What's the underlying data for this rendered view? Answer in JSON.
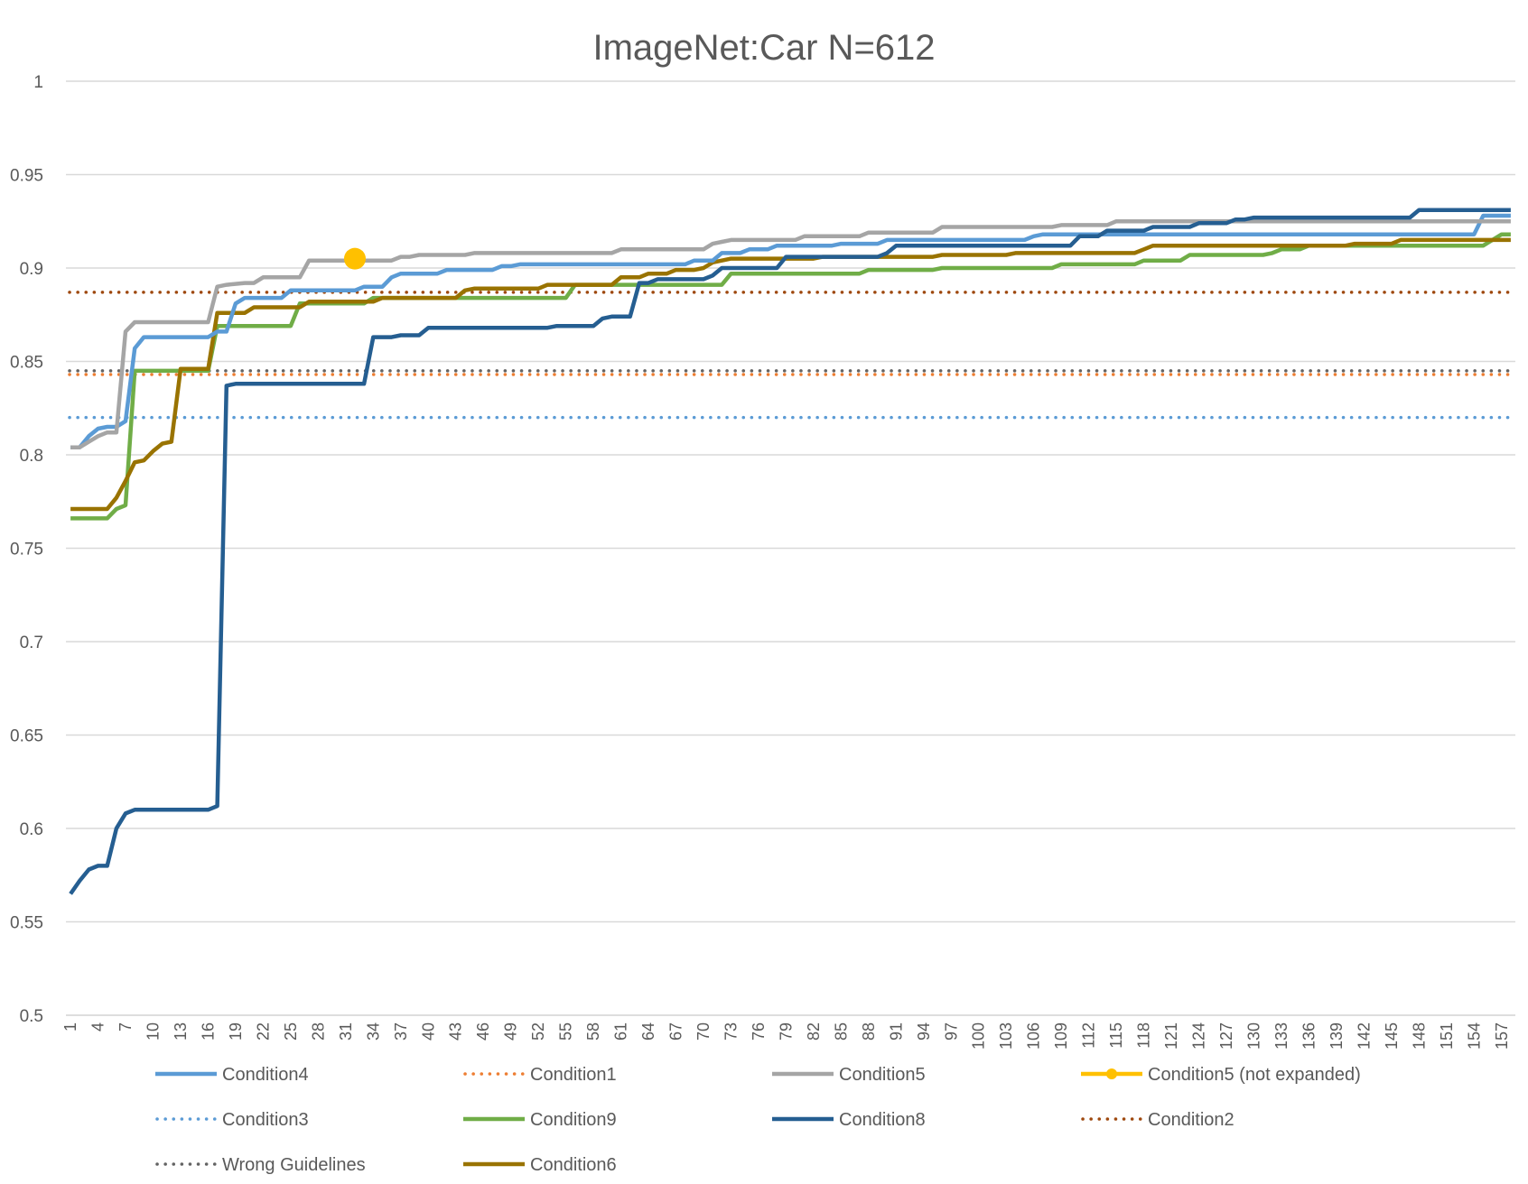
{
  "chart_data": {
    "type": "line",
    "title": "ImageNet:Car N=612",
    "xlabel": "",
    "ylabel": "",
    "ylim": [
      0.5,
      1
    ],
    "yticks": [
      "0.5",
      "0.55",
      "0.6",
      "0.65",
      "0.7",
      "0.75",
      "0.8",
      "0.85",
      "0.9",
      "0.95",
      "1"
    ],
    "x_range": [
      1,
      158
    ],
    "x_tick_labels": [
      "1",
      "4",
      "7",
      "10",
      "13",
      "16",
      "19",
      "22",
      "25",
      "28",
      "31",
      "34",
      "37",
      "40",
      "43",
      "46",
      "49",
      "52",
      "55",
      "58",
      "61",
      "64",
      "67",
      "70",
      "73",
      "76",
      "79",
      "82",
      "85",
      "88",
      "91",
      "94",
      "97",
      "100",
      "103",
      "106",
      "109",
      "112",
      "115",
      "118",
      "121",
      "124",
      "127",
      "130",
      "133",
      "136",
      "139",
      "142",
      "145",
      "148",
      "151",
      "154",
      "157"
    ],
    "grid": "horizontal",
    "legend_position": "bottom",
    "colors": {
      "Condition4": "#5b9bd5",
      "Condition1": "#ed7d31",
      "Condition5": "#a5a5a5",
      "Condition5 (not expanded)": "#ffc000",
      "Condition3": "#5b9bd5",
      "Condition9": "#70ad47",
      "Condition8": "#255e91",
      "Condition2": "#9e480e",
      "Wrong Guidelines": "#636363",
      "Condition6": "#997300"
    },
    "series": [
      {
        "name": "Condition4",
        "style": "solid",
        "points": [
          [
            1,
            0.804
          ],
          [
            2,
            0.804
          ],
          [
            3,
            0.81
          ],
          [
            4,
            0.814
          ],
          [
            5,
            0.815
          ],
          [
            6,
            0.815
          ],
          [
            7,
            0.818
          ],
          [
            8,
            0.857
          ],
          [
            9,
            0.863
          ],
          [
            16,
            0.863
          ],
          [
            17,
            0.866
          ],
          [
            18,
            0.866
          ],
          [
            19,
            0.881
          ],
          [
            20,
            0.884
          ],
          [
            24,
            0.884
          ],
          [
            25,
            0.888
          ],
          [
            32,
            0.888
          ],
          [
            33,
            0.89
          ],
          [
            35,
            0.89
          ],
          [
            36,
            0.895
          ],
          [
            37,
            0.897
          ],
          [
            41,
            0.897
          ],
          [
            42,
            0.899
          ],
          [
            47,
            0.899
          ],
          [
            48,
            0.901
          ],
          [
            49,
            0.901
          ],
          [
            50,
            0.902
          ],
          [
            68,
            0.902
          ],
          [
            69,
            0.904
          ],
          [
            71,
            0.904
          ],
          [
            72,
            0.908
          ],
          [
            74,
            0.908
          ],
          [
            75,
            0.91
          ],
          [
            77,
            0.91
          ],
          [
            78,
            0.912
          ],
          [
            84,
            0.912
          ],
          [
            85,
            0.913
          ],
          [
            89,
            0.913
          ],
          [
            90,
            0.915
          ],
          [
            105,
            0.915
          ],
          [
            106,
            0.917
          ],
          [
            107,
            0.918
          ],
          [
            154,
            0.918
          ],
          [
            155,
            0.928
          ],
          [
            158,
            0.928
          ]
        ]
      },
      {
        "name": "Condition1",
        "style": "dotted",
        "points": [
          [
            1,
            0.843
          ],
          [
            158,
            0.843
          ]
        ]
      },
      {
        "name": "Condition5",
        "style": "solid",
        "points": [
          [
            1,
            0.804
          ],
          [
            2,
            0.804
          ],
          [
            3,
            0.807
          ],
          [
            4,
            0.81
          ],
          [
            5,
            0.812
          ],
          [
            6,
            0.812
          ],
          [
            7,
            0.866
          ],
          [
            8,
            0.871
          ],
          [
            16,
            0.871
          ],
          [
            17,
            0.89
          ],
          [
            18,
            0.891
          ],
          [
            20,
            0.892
          ],
          [
            21,
            0.892
          ],
          [
            22,
            0.895
          ],
          [
            26,
            0.895
          ],
          [
            27,
            0.904
          ],
          [
            36,
            0.904
          ],
          [
            37,
            0.906
          ],
          [
            38,
            0.906
          ],
          [
            39,
            0.907
          ],
          [
            44,
            0.907
          ],
          [
            45,
            0.908
          ],
          [
            60,
            0.908
          ],
          [
            61,
            0.91
          ],
          [
            70,
            0.91
          ],
          [
            71,
            0.913
          ],
          [
            72,
            0.914
          ],
          [
            73,
            0.915
          ],
          [
            80,
            0.915
          ],
          [
            81,
            0.917
          ],
          [
            87,
            0.917
          ],
          [
            88,
            0.919
          ],
          [
            95,
            0.919
          ],
          [
            96,
            0.922
          ],
          [
            108,
            0.922
          ],
          [
            109,
            0.923
          ],
          [
            114,
            0.923
          ],
          [
            115,
            0.925
          ],
          [
            158,
            0.925
          ]
        ]
      },
      {
        "name": "Condition5 (not expanded)",
        "style": "marker",
        "points": [
          [
            32,
            0.905
          ]
        ]
      },
      {
        "name": "Condition3",
        "style": "dotted",
        "points": [
          [
            1,
            0.82
          ],
          [
            158,
            0.82
          ]
        ]
      },
      {
        "name": "Condition9",
        "style": "solid",
        "points": [
          [
            1,
            0.766
          ],
          [
            5,
            0.766
          ],
          [
            6,
            0.771
          ],
          [
            7,
            0.773
          ],
          [
            8,
            0.845
          ],
          [
            16,
            0.845
          ],
          [
            17,
            0.869
          ],
          [
            25,
            0.869
          ],
          [
            26,
            0.881
          ],
          [
            33,
            0.881
          ],
          [
            34,
            0.884
          ],
          [
            55,
            0.884
          ],
          [
            56,
            0.891
          ],
          [
            72,
            0.891
          ],
          [
            73,
            0.897
          ],
          [
            87,
            0.897
          ],
          [
            88,
            0.899
          ],
          [
            95,
            0.899
          ],
          [
            96,
            0.9
          ],
          [
            108,
            0.9
          ],
          [
            109,
            0.902
          ],
          [
            117,
            0.902
          ],
          [
            118,
            0.904
          ],
          [
            122,
            0.904
          ],
          [
            123,
            0.907
          ],
          [
            131,
            0.907
          ],
          [
            132,
            0.908
          ],
          [
            133,
            0.91
          ],
          [
            135,
            0.91
          ],
          [
            136,
            0.912
          ],
          [
            155,
            0.912
          ],
          [
            156,
            0.915
          ],
          [
            157,
            0.918
          ],
          [
            158,
            0.918
          ]
        ]
      },
      {
        "name": "Condition8",
        "style": "solid",
        "points": [
          [
            1,
            0.565
          ],
          [
            2,
            0.572
          ],
          [
            3,
            0.578
          ],
          [
            4,
            0.58
          ],
          [
            5,
            0.58
          ],
          [
            6,
            0.6
          ],
          [
            7,
            0.608
          ],
          [
            8,
            0.61
          ],
          [
            16,
            0.61
          ],
          [
            17,
            0.612
          ],
          [
            18,
            0.837
          ],
          [
            19,
            0.838
          ],
          [
            33,
            0.838
          ],
          [
            34,
            0.863
          ],
          [
            36,
            0.863
          ],
          [
            37,
            0.864
          ],
          [
            39,
            0.864
          ],
          [
            40,
            0.868
          ],
          [
            53,
            0.868
          ],
          [
            54,
            0.869
          ],
          [
            58,
            0.869
          ],
          [
            59,
            0.873
          ],
          [
            60,
            0.874
          ],
          [
            62,
            0.874
          ],
          [
            63,
            0.892
          ],
          [
            64,
            0.892
          ],
          [
            65,
            0.894
          ],
          [
            70,
            0.894
          ],
          [
            71,
            0.896
          ],
          [
            72,
            0.9
          ],
          [
            78,
            0.9
          ],
          [
            79,
            0.906
          ],
          [
            89,
            0.906
          ],
          [
            90,
            0.908
          ],
          [
            91,
            0.912
          ],
          [
            110,
            0.912
          ],
          [
            111,
            0.917
          ],
          [
            113,
            0.917
          ],
          [
            114,
            0.92
          ],
          [
            118,
            0.92
          ],
          [
            119,
            0.922
          ],
          [
            123,
            0.922
          ],
          [
            124,
            0.924
          ],
          [
            127,
            0.924
          ],
          [
            128,
            0.926
          ],
          [
            129,
            0.926
          ],
          [
            130,
            0.927
          ],
          [
            147,
            0.927
          ],
          [
            148,
            0.931
          ],
          [
            158,
            0.931
          ]
        ]
      },
      {
        "name": "Condition2",
        "style": "dotted",
        "points": [
          [
            1,
            0.887
          ],
          [
            158,
            0.887
          ]
        ]
      },
      {
        "name": "Wrong Guidelines",
        "style": "dotted",
        "points": [
          [
            1,
            0.845
          ],
          [
            158,
            0.845
          ]
        ]
      },
      {
        "name": "Condition6",
        "style": "solid",
        "points": [
          [
            1,
            0.771
          ],
          [
            5,
            0.771
          ],
          [
            6,
            0.777
          ],
          [
            7,
            0.786
          ],
          [
            8,
            0.796
          ],
          [
            9,
            0.797
          ],
          [
            10,
            0.802
          ],
          [
            11,
            0.806
          ],
          [
            12,
            0.807
          ],
          [
            13,
            0.846
          ],
          [
            16,
            0.846
          ],
          [
            17,
            0.876
          ],
          [
            20,
            0.876
          ],
          [
            21,
            0.879
          ],
          [
            26,
            0.879
          ],
          [
            27,
            0.882
          ],
          [
            34,
            0.882
          ],
          [
            35,
            0.884
          ],
          [
            43,
            0.884
          ],
          [
            44,
            0.888
          ],
          [
            45,
            0.889
          ],
          [
            52,
            0.889
          ],
          [
            53,
            0.891
          ],
          [
            60,
            0.891
          ],
          [
            61,
            0.895
          ],
          [
            63,
            0.895
          ],
          [
            64,
            0.897
          ],
          [
            66,
            0.897
          ],
          [
            67,
            0.899
          ],
          [
            69,
            0.899
          ],
          [
            70,
            0.9
          ],
          [
            71,
            0.903
          ],
          [
            73,
            0.905
          ],
          [
            82,
            0.905
          ],
          [
            83,
            0.906
          ],
          [
            95,
            0.906
          ],
          [
            96,
            0.907
          ],
          [
            103,
            0.907
          ],
          [
            104,
            0.908
          ],
          [
            117,
            0.908
          ],
          [
            118,
            0.91
          ],
          [
            119,
            0.912
          ],
          [
            140,
            0.912
          ],
          [
            141,
            0.913
          ],
          [
            145,
            0.913
          ],
          [
            146,
            0.915
          ],
          [
            158,
            0.915
          ]
        ]
      }
    ]
  }
}
